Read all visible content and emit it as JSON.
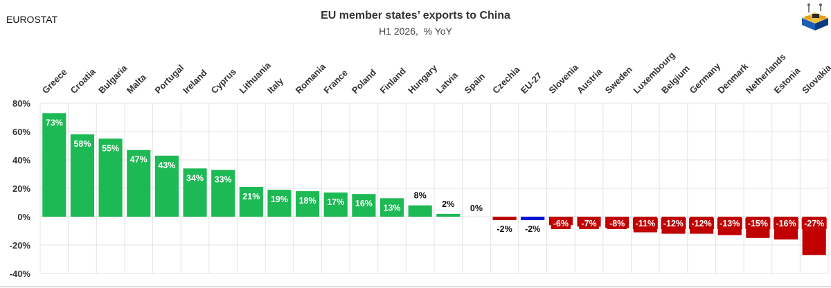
{
  "header": {
    "source": "EUROSTAT",
    "title": "EU member states’ exports to China",
    "subtitle": "H1 2026,  % YoY"
  },
  "colors": {
    "positive": "#1db954",
    "negative": "#c00000",
    "highlight": "#0015d6",
    "grid": "#e3e3e3"
  },
  "logo": {
    "icon": "ship-containers-logo"
  },
  "chart_data": {
    "type": "bar",
    "title": "EU member states’ exports to China",
    "subtitle": "H1 2026,  % YoY",
    "xlabel": "",
    "ylabel": "",
    "ylim": [
      -40,
      80
    ],
    "yticks": [
      -40,
      -20,
      0,
      20,
      40,
      60,
      80
    ],
    "ytick_labels": [
      "-40%",
      "-20%",
      "0%",
      "20%",
      "40%",
      "60%",
      "80%"
    ],
    "grid": true,
    "category_axis_position": "top",
    "categories": [
      "Greece",
      "Croatia",
      "Bulgaria",
      "Malta",
      "Portugal",
      "Ireland",
      "Cyprus",
      "Lithuania",
      "Italy",
      "Romania",
      "France",
      "Poland",
      "Finland",
      "Hungary",
      "Latvia",
      "Spain",
      "Czechia",
      "EU-27",
      "Slovenia",
      "Austria",
      "Sweden",
      "Luxembourg",
      "Belgium",
      "Germany",
      "Denmark",
      "Netherlands",
      "Estonia",
      "Slovakia"
    ],
    "values": [
      73,
      58,
      55,
      47,
      43,
      34,
      33,
      21,
      19,
      18,
      17,
      16,
      13,
      8,
      2,
      0,
      -2,
      -2,
      -6,
      -7,
      -8,
      -11,
      -12,
      -12,
      -13,
      -15,
      -16,
      -27
    ],
    "labels": [
      "73%",
      "58%",
      "55%",
      "47%",
      "43%",
      "34%",
      "33%",
      "21%",
      "19%",
      "18%",
      "17%",
      "16%",
      "13%",
      "8%",
      "2%",
      "0%",
      "-2%",
      "-2%",
      "-6%",
      "-7%",
      "-8%",
      "-11%",
      "-12%",
      "-12%",
      "-13%",
      "-15%",
      "-16%",
      "-27%"
    ],
    "highlight_category": "EU-27"
  }
}
